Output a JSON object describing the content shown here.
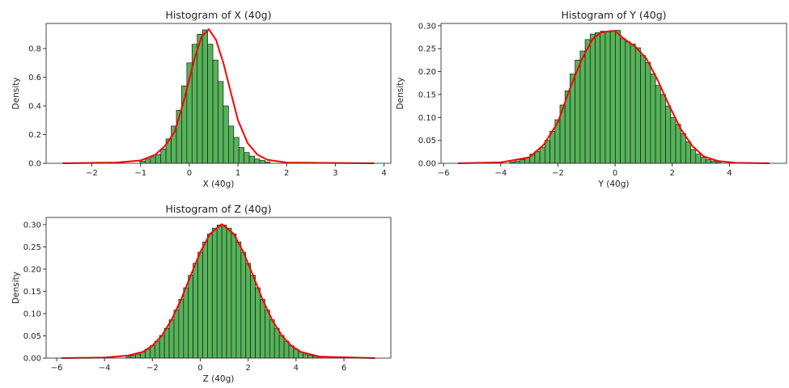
{
  "colors": {
    "bar_fill": "#4caf50",
    "bar_edge": "#1a1a1a",
    "kde_line": "#ff0000",
    "axes": "#333333"
  },
  "chart_data": [
    {
      "type": "bar",
      "title": "Histogram of X (40g)",
      "xlabel": "X (40g)",
      "ylabel": "Density",
      "xlim": [
        -2.94,
        4.14
      ],
      "ylim": [
        0,
        0.975
      ],
      "xticks": [
        -2,
        -1,
        0,
        1,
        2,
        3,
        4
      ],
      "xtick_labels": [
        "−2",
        "−1",
        "0",
        "1",
        "2",
        "3",
        "4"
      ],
      "yticks": [
        0,
        0.2,
        0.4,
        0.6,
        0.8
      ],
      "ytick_labels": [
        "0.0",
        "0.2",
        "0.4",
        "0.6",
        "0.8"
      ],
      "grid": false,
      "histogram": {
        "first_bin_center": -0.96,
        "bin_width": 0.107,
        "density": [
          0.015,
          0.03,
          0.045,
          0.06,
          0.1,
          0.17,
          0.26,
          0.37,
          0.54,
          0.7,
          0.83,
          0.9,
          0.93,
          0.83,
          0.72,
          0.57,
          0.4,
          0.26,
          0.18,
          0.11,
          0.075,
          0.05,
          0.03,
          0.02,
          0.01
        ]
      },
      "kde": {
        "x": [
          -2.6,
          -1.5,
          -1.0,
          -0.7,
          -0.5,
          -0.3,
          -0.1,
          0.1,
          0.25,
          0.4,
          0.55,
          0.7,
          0.85,
          1.0,
          1.2,
          1.4,
          1.6,
          2.0,
          3.8
        ],
        "y": [
          0,
          0.005,
          0.02,
          0.06,
          0.12,
          0.22,
          0.45,
          0.72,
          0.88,
          0.935,
          0.86,
          0.7,
          0.5,
          0.3,
          0.14,
          0.06,
          0.025,
          0.005,
          0
        ]
      }
    },
    {
      "type": "bar",
      "title": "Histogram of Y (40g)",
      "xlabel": "Y (40g)",
      "ylabel": "Density",
      "xlim": [
        -6.09,
        6.0
      ],
      "ylim": [
        0,
        0.305
      ],
      "xticks": [
        -6,
        -4,
        -2,
        0,
        2,
        4
      ],
      "xtick_labels": [
        "−6",
        "−4",
        "−2",
        "0",
        "2",
        "4"
      ],
      "yticks": [
        0,
        0.05,
        0.1,
        0.15,
        0.2,
        0.25,
        0.3
      ],
      "ytick_labels": [
        "0.00",
        "0.05",
        "0.10",
        "0.15",
        "0.20",
        "0.25",
        "0.30"
      ],
      "grid": false,
      "histogram": {
        "first_bin_center": -3.6,
        "bin_width": 0.176,
        "density": [
          0.003,
          0.005,
          0.008,
          0.012,
          0.02,
          0.026,
          0.035,
          0.05,
          0.07,
          0.095,
          0.127,
          0.158,
          0.195,
          0.225,
          0.245,
          0.27,
          0.282,
          0.285,
          0.288,
          0.288,
          0.288,
          0.29,
          0.272,
          0.265,
          0.26,
          0.252,
          0.235,
          0.22,
          0.195,
          0.17,
          0.15,
          0.125,
          0.1,
          0.085,
          0.065,
          0.047,
          0.03,
          0.02,
          0.013,
          0.008,
          0.005,
          0.003
        ]
      },
      "kde": {
        "x": [
          -5.5,
          -4.0,
          -3.0,
          -2.5,
          -2.0,
          -1.6,
          -1.2,
          -0.8,
          -0.5,
          -0.2,
          0.0,
          0.3,
          0.7,
          1.1,
          1.5,
          1.9,
          2.3,
          2.7,
          3.1,
          3.6,
          4.2,
          5.4
        ],
        "y": [
          0,
          0.002,
          0.013,
          0.04,
          0.09,
          0.16,
          0.222,
          0.27,
          0.285,
          0.288,
          0.289,
          0.272,
          0.255,
          0.228,
          0.18,
          0.125,
          0.075,
          0.038,
          0.015,
          0.005,
          0.001,
          0
        ]
      }
    },
    {
      "type": "bar",
      "title": "Histogram of Z (40g)",
      "xlabel": "Z (40g)",
      "ylabel": "Density",
      "xlim": [
        -6.44,
        7.96
      ],
      "ylim": [
        0,
        0.316
      ],
      "xticks": [
        -6,
        -4,
        -2,
        0,
        2,
        4,
        6
      ],
      "xtick_labels": [
        "−6",
        "−4",
        "−2",
        "0",
        "2",
        "4",
        "6"
      ],
      "yticks": [
        0,
        0.05,
        0.1,
        0.15,
        0.2,
        0.25,
        0.3
      ],
      "ytick_labels": [
        "0.00",
        "0.05",
        "0.10",
        "0.15",
        "0.20",
        "0.25",
        "0.30"
      ],
      "grid": false,
      "histogram": {
        "first_bin_center": -3.0,
        "bin_width": 0.2,
        "density": [
          0.004,
          0.006,
          0.009,
          0.014,
          0.02,
          0.028,
          0.038,
          0.051,
          0.067,
          0.086,
          0.108,
          0.132,
          0.158,
          0.186,
          0.213,
          0.238,
          0.261,
          0.279,
          0.292,
          0.299,
          0.299,
          0.292,
          0.279,
          0.261,
          0.238,
          0.213,
          0.186,
          0.158,
          0.132,
          0.108,
          0.086,
          0.067,
          0.051,
          0.038,
          0.028,
          0.02,
          0.014,
          0.009,
          0.006,
          0.004,
          0.003
        ]
      },
      "kde": {
        "x": [
          -5.8,
          -4.0,
          -3.0,
          -2.4,
          -2.0,
          -1.6,
          -1.2,
          -0.8,
          -0.4,
          0.0,
          0.4,
          0.9,
          1.4,
          1.8,
          2.2,
          2.6,
          3.0,
          3.4,
          3.8,
          4.2,
          5.0,
          7.3
        ],
        "y": [
          0,
          0.001,
          0.006,
          0.014,
          0.028,
          0.051,
          0.086,
          0.132,
          0.186,
          0.238,
          0.279,
          0.301,
          0.279,
          0.238,
          0.186,
          0.132,
          0.086,
          0.051,
          0.028,
          0.014,
          0.003,
          0
        ]
      }
    }
  ]
}
